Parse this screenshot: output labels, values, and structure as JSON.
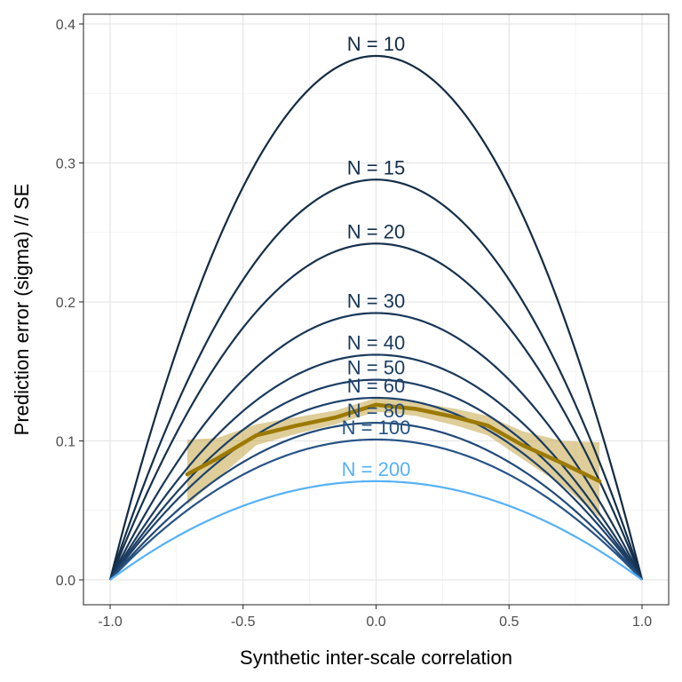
{
  "chart_data": {
    "type": "line",
    "title": "",
    "xlabel": "Synthetic inter-scale correlation",
    "ylabel": "Prediction error (sigma) // SE",
    "xlim": [
      -1.0,
      1.0
    ],
    "ylim": [
      0.0,
      0.4
    ],
    "x_ticks": [
      "-1.0",
      "-0.5",
      "0.0",
      "0.5",
      "1.0"
    ],
    "y_ticks": [
      "0.0",
      "0.1",
      "0.2",
      "0.3",
      "0.4"
    ],
    "grid": true,
    "legend": "none",
    "series": [
      {
        "name": "N = 10",
        "peak": 0.377,
        "color": "#132b43"
      },
      {
        "name": "N = 15",
        "peak": 0.288,
        "color": "#142f49"
      },
      {
        "name": "N = 20",
        "peak": 0.242,
        "color": "#16324e"
      },
      {
        "name": "N = 30",
        "peak": 0.192,
        "color": "#183656"
      },
      {
        "name": "N = 40",
        "peak": 0.162,
        "color": "#1a3a5d"
      },
      {
        "name": "N = 50",
        "peak": 0.144,
        "color": "#1c3e64"
      },
      {
        "name": "N = 60",
        "peak": 0.131,
        "color": "#1e426b"
      },
      {
        "name": "N = 80",
        "peak": 0.113,
        "color": "#224a78"
      },
      {
        "name": "N = 100",
        "peak": 0.101,
        "color": "#275386"
      },
      {
        "name": "N = 200",
        "peak": 0.071,
        "color": "#56b1f7"
      }
    ],
    "trend": {
      "color": "#9c7a00",
      "band_color": "#c9ad57",
      "points": [
        {
          "x": -0.71,
          "y": 0.076,
          "lo": 0.054,
          "hi": 0.101
        },
        {
          "x": -0.6,
          "y": 0.087,
          "lo": 0.072,
          "hi": 0.102
        },
        {
          "x": -0.45,
          "y": 0.104,
          "lo": 0.097,
          "hi": 0.112
        },
        {
          "x": -0.3,
          "y": 0.111,
          "lo": 0.105,
          "hi": 0.117
        },
        {
          "x": -0.15,
          "y": 0.117,
          "lo": 0.112,
          "hi": 0.122
        },
        {
          "x": 0.0,
          "y": 0.126,
          "lo": 0.121,
          "hi": 0.131
        },
        {
          "x": 0.15,
          "y": 0.123,
          "lo": 0.118,
          "hi": 0.128
        },
        {
          "x": 0.3,
          "y": 0.117,
          "lo": 0.111,
          "hi": 0.123
        },
        {
          "x": 0.42,
          "y": 0.111,
          "lo": 0.104,
          "hi": 0.118
        },
        {
          "x": 0.55,
          "y": 0.097,
          "lo": 0.087,
          "hi": 0.107
        },
        {
          "x": 0.7,
          "y": 0.084,
          "lo": 0.068,
          "hi": 0.1
        },
        {
          "x": 0.84,
          "y": 0.071,
          "lo": 0.045,
          "hi": 0.099
        }
      ]
    }
  }
}
